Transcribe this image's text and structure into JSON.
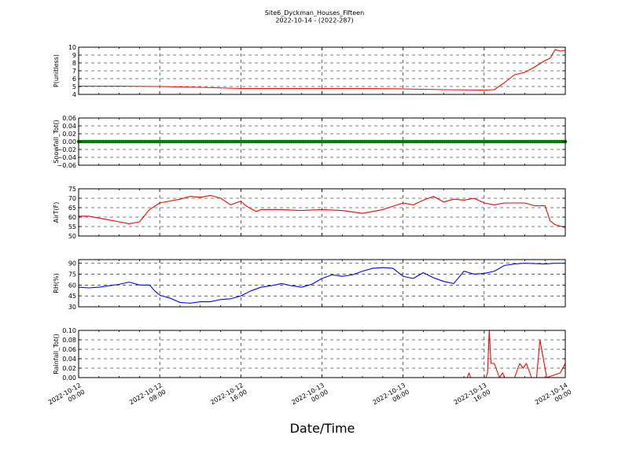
{
  "figure": {
    "title_line1": "Site6_Dyckman_Houses_Fifteen",
    "title_line2": "2022-10-14 - (2022-287)",
    "xlabel": "Date/Time"
  },
  "x_ticks": [
    {
      "line1": "2022-10-12",
      "line2": "00:00"
    },
    {
      "line1": "2022-10-12",
      "line2": "08:00"
    },
    {
      "line1": "2022-10-12",
      "line2": "16:00"
    },
    {
      "line1": "2022-10-13",
      "line2": "00:00"
    },
    {
      "line1": "2022-10-13",
      "line2": "08:00"
    },
    {
      "line1": "2022-10-13",
      "line2": "16:00"
    },
    {
      "line1": "2022-10-14",
      "line2": "00:00"
    }
  ],
  "chart_data": [
    {
      "type": "line",
      "ylabel": "P(unitless)",
      "x_range": [
        "2022-10-12 00:00",
        "2022-10-14 00:00"
      ],
      "ylim": [
        4,
        10
      ],
      "yticks": [
        4,
        5,
        6,
        7,
        8,
        9,
        10
      ],
      "ytick_labels": [
        "4",
        "5",
        "6",
        "7",
        "8",
        "9",
        "10"
      ],
      "grid": true,
      "series": [
        {
          "color": "#ff0000",
          "marker": "none",
          "points": [
            [
              "2022-10-12 00:00",
              5.05
            ],
            [
              "2022-10-12 04:00",
              5.05
            ],
            [
              "2022-10-12 08:00",
              5.0
            ],
            [
              "2022-10-12 12:00",
              4.9
            ],
            [
              "2022-10-12 16:00",
              4.75
            ],
            [
              "2022-10-12 20:00",
              4.75
            ],
            [
              "2022-10-13 00:00",
              4.75
            ],
            [
              "2022-10-13 04:00",
              4.75
            ],
            [
              "2022-10-13 08:00",
              4.7
            ],
            [
              "2022-10-13 12:00",
              4.6
            ],
            [
              "2022-10-13 16:00",
              4.55
            ],
            [
              "2022-10-13 17:00",
              4.6
            ],
            [
              "2022-10-13 18:00",
              5.5
            ],
            [
              "2022-10-13 19:00",
              6.5
            ],
            [
              "2022-10-13 20:00",
              6.8
            ],
            [
              "2022-10-13 21:00",
              7.5
            ],
            [
              "2022-10-13 22:00",
              8.3
            ],
            [
              "2022-10-13 22:30",
              8.6
            ],
            [
              "2022-10-13 23:00",
              9.7
            ],
            [
              "2022-10-13 23:30",
              9.5
            ],
            [
              "2022-10-14 00:00",
              9.6
            ]
          ]
        }
      ]
    },
    {
      "type": "scatter",
      "ylabel": "Snowfall_Tot()",
      "x_range": [
        "2022-10-12 00:00",
        "2022-10-14 00:00"
      ],
      "ylim": [
        -0.06,
        0.06
      ],
      "yticks": [
        -0.06,
        -0.04,
        -0.02,
        0.0,
        0.02,
        0.04,
        0.06
      ],
      "ytick_labels": [
        "−0.06",
        "−0.04",
        "−0.02",
        "0.00",
        "0.02",
        "0.04",
        "0.06"
      ],
      "grid": true,
      "series": [
        {
          "color": "#008000",
          "marker": "dot",
          "points": [
            [
              "2022-10-12 00:00",
              0.0
            ],
            [
              "2022-10-14 00:00",
              0.0
            ]
          ],
          "note": "value 0.00 at every sample"
        }
      ]
    },
    {
      "type": "line",
      "ylabel": "AirT(F)",
      "x_range": [
        "2022-10-12 00:00",
        "2022-10-14 00:00"
      ],
      "ylim": [
        50,
        75
      ],
      "yticks": [
        50,
        55,
        60,
        65,
        70,
        75
      ],
      "ytick_labels": [
        "50",
        "55",
        "60",
        "65",
        "70",
        "75"
      ],
      "grid": true,
      "series": [
        {
          "color": "#ff0000",
          "marker": "none",
          "points": [
            [
              "2022-10-12 00:00",
              60.5
            ],
            [
              "2022-10-12 01:00",
              60.5
            ],
            [
              "2022-10-12 02:00",
              59.5
            ],
            [
              "2022-10-12 03:00",
              58.5
            ],
            [
              "2022-10-12 04:00",
              57.5
            ],
            [
              "2022-10-12 05:00",
              56.5
            ],
            [
              "2022-10-12 06:00",
              57.5
            ],
            [
              "2022-10-12 07:00",
              64.0
            ],
            [
              "2022-10-12 08:00",
              67.5
            ],
            [
              "2022-10-12 10:00",
              69.5
            ],
            [
              "2022-10-12 11:00",
              71.0
            ],
            [
              "2022-10-12 12:00",
              70.5
            ],
            [
              "2022-10-12 13:00",
              71.5
            ],
            [
              "2022-10-12 14:00",
              70.0
            ],
            [
              "2022-10-12 15:00",
              66.5
            ],
            [
              "2022-10-12 16:00",
              68.5
            ],
            [
              "2022-10-12 16:30",
              66.0
            ],
            [
              "2022-10-12 17:30",
              63.0
            ],
            [
              "2022-10-12 18:00",
              64.0
            ],
            [
              "2022-10-12 20:00",
              64.0
            ],
            [
              "2022-10-12 22:00",
              63.5
            ],
            [
              "2022-10-13 00:00",
              64.0
            ],
            [
              "2022-10-13 02:00",
              63.5
            ],
            [
              "2022-10-13 04:00",
              62.0
            ],
            [
              "2022-10-13 06:00",
              64.0
            ],
            [
              "2022-10-13 08:00",
              67.5
            ],
            [
              "2022-10-13 09:00",
              66.5
            ],
            [
              "2022-10-13 10:00",
              69.0
            ],
            [
              "2022-10-13 11:00",
              71.0
            ],
            [
              "2022-10-13 12:00",
              68.0
            ],
            [
              "2022-10-13 13:00",
              69.5
            ],
            [
              "2022-10-13 14:00",
              69.0
            ],
            [
              "2022-10-13 15:00",
              70.0
            ],
            [
              "2022-10-13 16:00",
              67.5
            ],
            [
              "2022-10-13 17:00",
              66.5
            ],
            [
              "2022-10-13 18:00",
              67.5
            ],
            [
              "2022-10-13 20:00",
              67.5
            ],
            [
              "2022-10-13 21:00",
              66.0
            ],
            [
              "2022-10-13 22:00",
              66.0
            ],
            [
              "2022-10-13 22:30",
              58.0
            ],
            [
              "2022-10-13 23:00",
              56.0
            ],
            [
              "2022-10-14 00:00",
              54.5
            ]
          ]
        }
      ]
    },
    {
      "type": "line",
      "ylabel": "RH(%)",
      "x_range": [
        "2022-10-12 00:00",
        "2022-10-14 00:00"
      ],
      "ylim": [
        30,
        95
      ],
      "yticks": [
        30,
        45,
        60,
        75,
        90
      ],
      "ytick_labels": [
        "30",
        "45",
        "60",
        "75",
        "90"
      ],
      "grid": true,
      "series": [
        {
          "color": "#0000ff",
          "marker": "none",
          "points": [
            [
              "2022-10-12 00:00",
              57
            ],
            [
              "2022-10-12 01:00",
              56
            ],
            [
              "2022-10-12 02:00",
              57
            ],
            [
              "2022-10-12 04:00",
              61
            ],
            [
              "2022-10-12 05:00",
              64
            ],
            [
              "2022-10-12 06:00",
              60
            ],
            [
              "2022-10-12 07:00",
              60
            ],
            [
              "2022-10-12 07:30",
              52
            ],
            [
              "2022-10-12 08:00",
              46
            ],
            [
              "2022-10-12 09:00",
              42
            ],
            [
              "2022-10-12 10:00",
              36
            ],
            [
              "2022-10-12 11:00",
              35
            ],
            [
              "2022-10-12 12:00",
              37
            ],
            [
              "2022-10-12 13:00",
              37
            ],
            [
              "2022-10-12 14:00",
              40
            ],
            [
              "2022-10-12 15:00",
              41
            ],
            [
              "2022-10-12 16:00",
              45
            ],
            [
              "2022-10-12 17:00",
              52
            ],
            [
              "2022-10-12 18:00",
              57
            ],
            [
              "2022-10-12 19:00",
              59
            ],
            [
              "2022-10-12 20:00",
              62
            ],
            [
              "2022-10-12 21:00",
              59
            ],
            [
              "2022-10-12 22:00",
              57
            ],
            [
              "2022-10-12 23:00",
              61
            ],
            [
              "2022-10-13 00:00",
              69
            ],
            [
              "2022-10-13 01:00",
              74
            ],
            [
              "2022-10-13 02:00",
              72
            ],
            [
              "2022-10-13 03:00",
              74
            ],
            [
              "2022-10-13 04:00",
              79
            ],
            [
              "2022-10-13 05:00",
              83
            ],
            [
              "2022-10-13 06:00",
              84
            ],
            [
              "2022-10-13 07:00",
              83
            ],
            [
              "2022-10-13 08:00",
              72
            ],
            [
              "2022-10-13 09:00",
              69
            ],
            [
              "2022-10-13 10:00",
              77
            ],
            [
              "2022-10-13 11:00",
              70
            ],
            [
              "2022-10-13 12:00",
              65
            ],
            [
              "2022-10-13 13:00",
              62
            ],
            [
              "2022-10-13 14:00",
              79
            ],
            [
              "2022-10-13 15:00",
              75
            ],
            [
              "2022-10-13 16:00",
              76
            ],
            [
              "2022-10-13 17:00",
              79
            ],
            [
              "2022-10-13 18:00",
              87
            ],
            [
              "2022-10-13 19:00",
              89
            ],
            [
              "2022-10-13 20:00",
              90
            ],
            [
              "2022-10-13 22:00",
              89
            ],
            [
              "2022-10-13 23:00",
              90
            ],
            [
              "2022-10-14 00:00",
              90
            ]
          ]
        }
      ]
    },
    {
      "type": "line",
      "ylabel": "Rainfall_Tot()",
      "x_range": [
        "2022-10-12 00:00",
        "2022-10-14 00:00"
      ],
      "ylim": [
        0.0,
        0.1
      ],
      "yticks": [
        0.0,
        0.02,
        0.04,
        0.06,
        0.08,
        0.1
      ],
      "ytick_labels": [
        "0.00",
        "0.02",
        "0.04",
        "0.06",
        "0.08",
        "0.10"
      ],
      "grid": true,
      "series": [
        {
          "color": "#ff0000",
          "marker": "none",
          "points": [
            [
              "2022-10-12 00:00",
              0.0
            ],
            [
              "2022-10-13 14:20",
              0.0
            ],
            [
              "2022-10-13 14:30",
              0.01
            ],
            [
              "2022-10-13 14:40",
              0.0
            ],
            [
              "2022-10-13 16:10",
              0.0
            ],
            [
              "2022-10-13 16:20",
              0.01
            ],
            [
              "2022-10-13 16:30",
              0.1
            ],
            [
              "2022-10-13 16:40",
              0.03
            ],
            [
              "2022-10-13 17:00",
              0.03
            ],
            [
              "2022-10-13 17:20",
              0.01
            ],
            [
              "2022-10-13 17:30",
              0.0
            ],
            [
              "2022-10-13 17:50",
              0.01
            ],
            [
              "2022-10-13 18:00",
              0.0
            ],
            [
              "2022-10-13 19:00",
              0.0
            ],
            [
              "2022-10-13 19:30",
              0.03
            ],
            [
              "2022-10-13 19:50",
              0.02
            ],
            [
              "2022-10-13 20:10",
              0.03
            ],
            [
              "2022-10-13 20:40",
              0.0
            ],
            [
              "2022-10-13 21:10",
              0.0
            ],
            [
              "2022-10-13 21:30",
              0.08
            ],
            [
              "2022-10-13 21:50",
              0.04
            ],
            [
              "2022-10-13 22:10",
              0.0
            ],
            [
              "2022-10-13 23:30",
              0.01
            ],
            [
              "2022-10-14 00:00",
              0.03
            ]
          ]
        }
      ]
    }
  ]
}
